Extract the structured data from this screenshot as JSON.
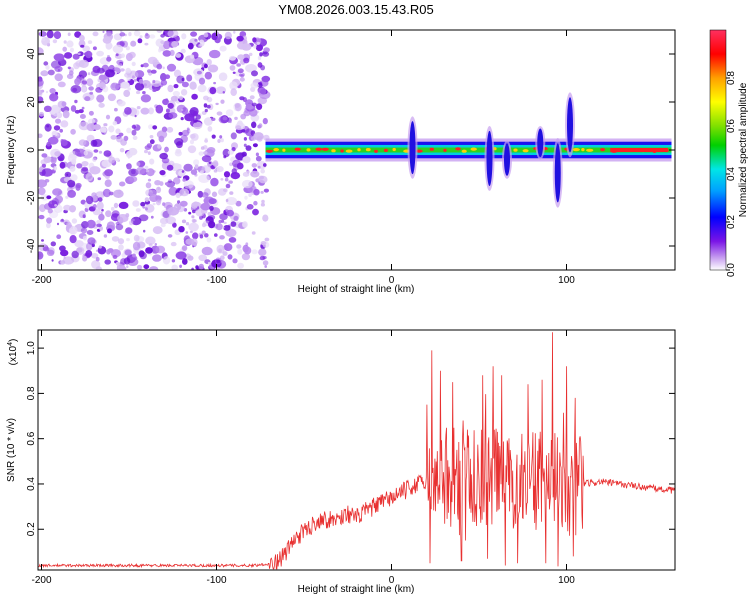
{
  "title": "YM08.2026.003.15.43.R05",
  "chart_data": [
    {
      "type": "heatmap",
      "xlabel": "Height of straight line (km)",
      "ylabel": "Frequency (Hz)",
      "xlim": [
        -202,
        162
      ],
      "ylim": [
        -50,
        50
      ],
      "xticks": [
        -200,
        -100,
        0,
        100
      ],
      "yticks": [
        -40,
        -20,
        0,
        20,
        40
      ],
      "noise_region": {
        "x_from": -202,
        "x_to": -71,
        "description_value_range": [
          0.15,
          0.35
        ]
      },
      "signal_band": {
        "x_from": -72,
        "x_to": 160,
        "center_hz": 0,
        "half_width_hz": 3
      },
      "spikes": [
        {
          "x": 12,
          "from_hz": -12,
          "to_hz": 14
        },
        {
          "x": 56,
          "from_hz": -17,
          "to_hz": 10
        },
        {
          "x": 66,
          "from_hz": -12,
          "to_hz": 4
        },
        {
          "x": 85,
          "from_hz": -4,
          "to_hz": 10
        },
        {
          "x": 95,
          "from_hz": -24,
          "to_hz": 5
        },
        {
          "x": 102,
          "from_hz": -3,
          "to_hz": 24
        }
      ],
      "colorbar": {
        "label": "Normalized spectral amplitude",
        "range": [
          0,
          1
        ],
        "ticks": [
          0.0,
          0.2,
          0.4,
          0.6,
          0.8
        ],
        "colors": [
          "#ffffff",
          "#c8a0f0",
          "#7a14e6",
          "#0000ff",
          "#00a0ff",
          "#00e6e6",
          "#00d000",
          "#80e000",
          "#ffff00",
          "#ffa000",
          "#ff0000",
          "#ff3060"
        ]
      }
    },
    {
      "type": "line",
      "xlabel": "Height of straight line (km)",
      "ylabel": "SNR (10 * v/v)",
      "ylabel_scale": "(x10",
      "ylabel_exp": "4",
      "xlim": [
        -202,
        162
      ],
      "ylim": [
        0.02,
        1.08
      ],
      "xticks": [
        -200,
        -100,
        0,
        100
      ],
      "yticks": [
        0.2,
        0.4,
        0.6,
        0.8,
        1.0
      ],
      "color": "#e83030",
      "series": [
        {
          "name": "SNR",
          "x": [
            -202,
            -120,
            -80,
            -66,
            -60,
            -55,
            -50,
            -45,
            -40,
            -35,
            -30,
            -25,
            -20,
            -15,
            -10,
            -5,
            0,
            5,
            10,
            15,
            20,
            25,
            30,
            35,
            40,
            45,
            50,
            55,
            60,
            65,
            70,
            75,
            80,
            85,
            90,
            95,
            100,
            105,
            110,
            120,
            130,
            140,
            150,
            162
          ],
          "y": [
            0.04,
            0.04,
            0.04,
            0.05,
            0.1,
            0.16,
            0.19,
            0.22,
            0.25,
            0.24,
            0.25,
            0.27,
            0.25,
            0.28,
            0.3,
            0.32,
            0.34,
            0.36,
            0.38,
            0.4,
            0.41,
            0.42,
            0.4,
            0.43,
            0.44,
            0.42,
            0.43,
            0.42,
            0.45,
            0.4,
            0.42,
            0.4,
            0.41,
            0.42,
            0.44,
            0.4,
            0.38,
            0.39,
            0.4,
            0.41,
            0.4,
            0.39,
            0.38,
            0.37
          ]
        }
      ],
      "spikes": [
        {
          "x": 23,
          "y": 0.99
        },
        {
          "x": 28,
          "y": 0.9
        },
        {
          "x": 35,
          "y": 0.85
        },
        {
          "x": 52,
          "y": 0.88
        },
        {
          "x": 58,
          "y": 0.92
        },
        {
          "x": 63,
          "y": 0.88
        },
        {
          "x": 78,
          "y": 0.84
        },
        {
          "x": 86,
          "y": 0.86
        },
        {
          "x": 92,
          "y": 1.07
        },
        {
          "x": 100,
          "y": 0.92
        },
        {
          "x": 105,
          "y": 0.78
        }
      ],
      "dips": [
        {
          "x": 22,
          "y": 0.05
        },
        {
          "x": 40,
          "y": 0.06
        },
        {
          "x": 55,
          "y": 0.07
        },
        {
          "x": 65,
          "y": 0.04
        },
        {
          "x": 72,
          "y": 0.05
        },
        {
          "x": 88,
          "y": 0.05
        },
        {
          "x": 104,
          "y": 0.08
        }
      ]
    }
  ]
}
